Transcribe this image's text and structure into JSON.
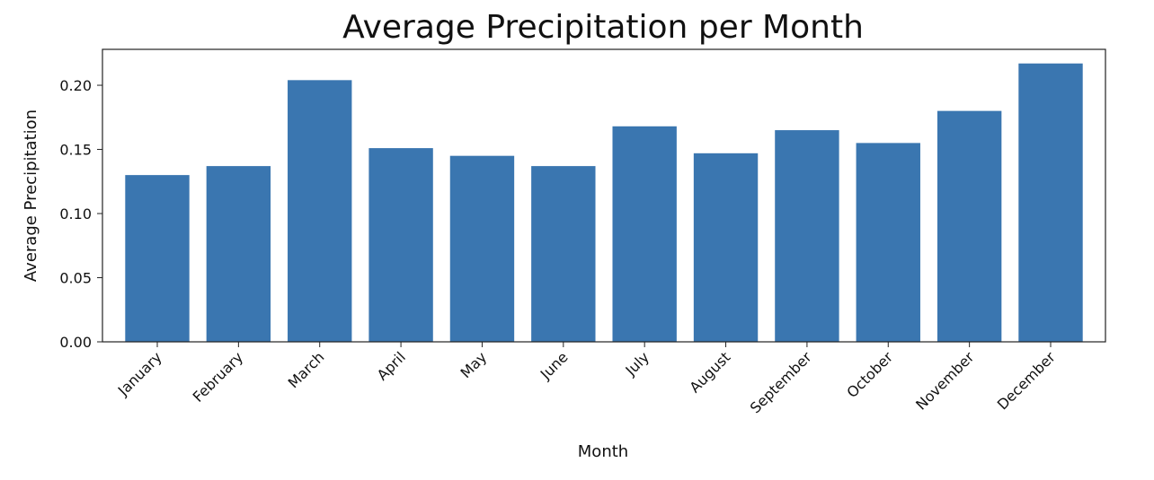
{
  "chart_data": {
    "type": "bar",
    "title": "Average Precipitation per Month",
    "xlabel": "Month",
    "ylabel": "Average Precipitation",
    "categories": [
      "January",
      "February",
      "March",
      "April",
      "May",
      "June",
      "July",
      "August",
      "September",
      "October",
      "November",
      "December"
    ],
    "values": [
      0.13,
      0.137,
      0.204,
      0.151,
      0.145,
      0.137,
      0.168,
      0.147,
      0.165,
      0.155,
      0.18,
      0.217
    ],
    "ylim": [
      0,
      0.228
    ],
    "yticks": [
      0.0,
      0.05,
      0.1,
      0.15,
      0.2
    ],
    "ytick_labels": [
      "0.00",
      "0.05",
      "0.10",
      "0.15",
      "0.20"
    ],
    "bar_color": "#3a76b0",
    "grid": false,
    "legend": "none"
  }
}
